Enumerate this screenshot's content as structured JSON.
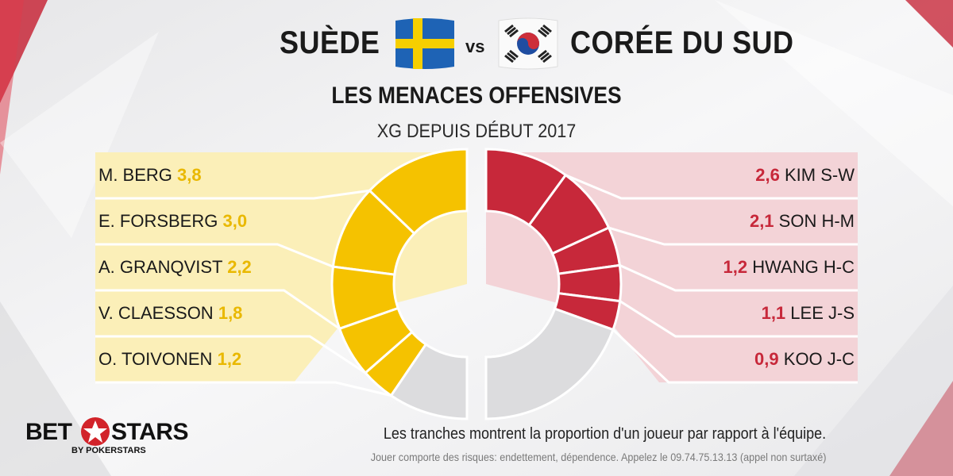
{
  "header": {
    "team_home": "SUÈDE",
    "vs": "vs",
    "team_away": "CORÉE DU SUD",
    "subtitle": "LES MENACES OFFENSIVES",
    "metric": "XG DEPUIS DÉBUT 2017"
  },
  "colors": {
    "home": "#f5c200",
    "home_light": "#fbefb8",
    "away": "#c7283a",
    "away_light": "#f3d3d7",
    "rest": "#dcdcde"
  },
  "chart_data": [
    {
      "type": "pie",
      "team": "SUÈDE",
      "categories": [
        "M. BERG",
        "E. FORSBERG",
        "A. GRANQVIST",
        "V. CLAESSON",
        "O. TOIVONEN"
      ],
      "value_labels": [
        "3,8",
        "3,0",
        "2,2",
        "1,8",
        "1,2"
      ],
      "values": [
        3.8,
        3.0,
        2.2,
        1.8,
        1.2
      ],
      "remainder_share": 0.19
    },
    {
      "type": "pie",
      "team": "CORÉE DU SUD",
      "categories": [
        "KIM S-W",
        "SON H-M",
        "HWANG H-C",
        "LEE J-S",
        "KOO J-C"
      ],
      "value_labels": [
        "2,6",
        "2,1",
        "1,2",
        "1,1",
        "0,9"
      ],
      "values": [
        2.6,
        2.1,
        1.2,
        1.1,
        0.9
      ],
      "remainder_share": 0.39
    }
  ],
  "footer": {
    "note": "Les tranches montrent la proportion d'un joueur par rapport à l'équipe.",
    "disclaimer": "Jouer comporte des risques: endettement, dépendence. Appelez le 09.74.75.13.13 (appel non surtaxé)",
    "logo_left": "BET",
    "logo_right": "STARS",
    "logo_sub": "BY POKERSTARS"
  }
}
